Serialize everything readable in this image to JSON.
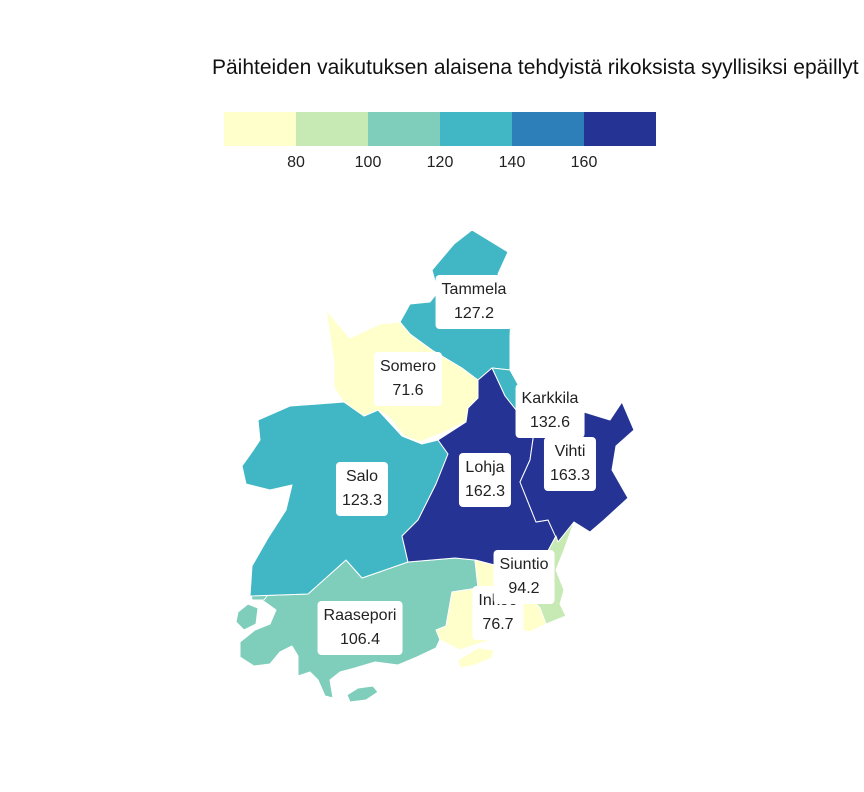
{
  "title": "Päihteiden vaikutuksen alaisena tehdyistä rikoksista syyllisiksi epäillyt",
  "legend": {
    "colors": [
      "#ffffcc",
      "#c7e9b4",
      "#7fcdbb",
      "#41b6c4",
      "#2c7fb8",
      "#253494"
    ],
    "ticks": [
      "80",
      "100",
      "120",
      "140",
      "160"
    ]
  },
  "regions": [
    {
      "name": "Tammela",
      "value": "127.2",
      "color": "#41b6c4"
    },
    {
      "name": "Somero",
      "value": "71.6",
      "color": "#ffffcc"
    },
    {
      "name": "Karkkila",
      "value": "132.6",
      "color": "#41b6c4"
    },
    {
      "name": "Vihti",
      "value": "163.3",
      "color": "#253494"
    },
    {
      "name": "Lohja",
      "value": "162.3",
      "color": "#253494"
    },
    {
      "name": "Salo",
      "value": "123.3",
      "color": "#41b6c4"
    },
    {
      "name": "Siuntio",
      "value": "94.2",
      "color": "#c7e9b4"
    },
    {
      "name": "Inkoo",
      "value": "76.7",
      "color": "#ffffcc"
    },
    {
      "name": "Raasepori",
      "value": "106.4",
      "color": "#7fcdbb"
    }
  ]
}
